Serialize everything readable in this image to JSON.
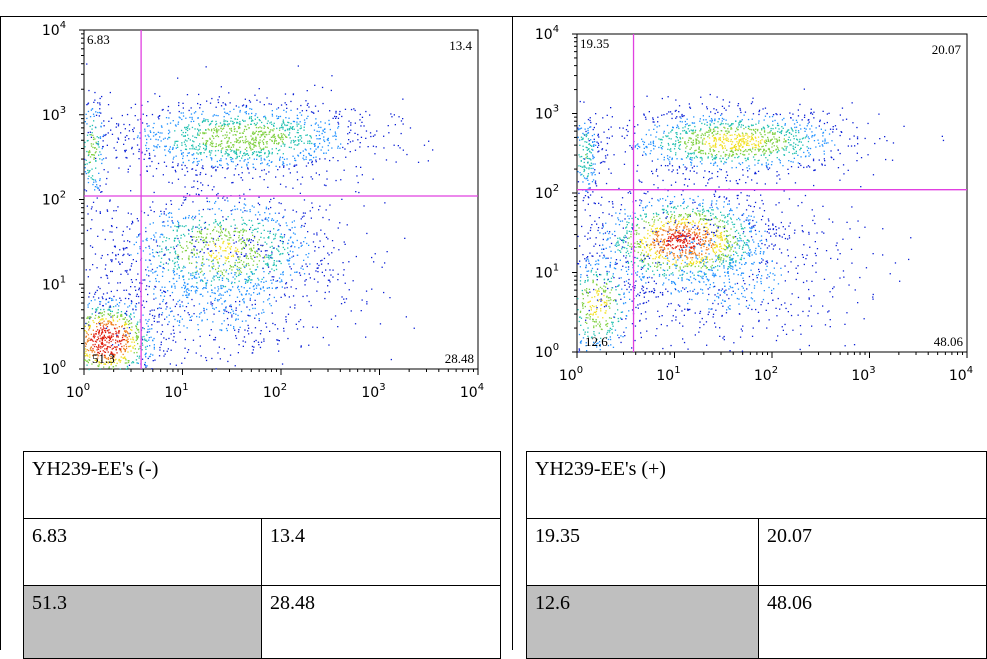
{
  "colors": {
    "gate": "#e040e0",
    "shade": "#bfbfbf",
    "density": [
      "#0a1fd6",
      "#1e90ff",
      "#20c0b0",
      "#7fd040",
      "#f2e020",
      "#f08020",
      "#e02010"
    ]
  },
  "chart_data": [
    {
      "type": "scatter",
      "subtype": "flow-cytometry-density-dot-plot",
      "xscale": "log",
      "yscale": "log",
      "xlim": [
        1,
        10000
      ],
      "ylim": [
        1,
        10000
      ],
      "x_ticks": [
        "10",
        "10",
        "10",
        "10",
        "10"
      ],
      "x_tick_exp": [
        "0",
        "1",
        "2",
        "3",
        "4"
      ],
      "y_ticks": [
        "10",
        "10",
        "10",
        "10",
        "10"
      ],
      "y_tick_exp": [
        "0",
        "1",
        "2",
        "3",
        "4"
      ],
      "gate": {
        "x": 3.8,
        "y": 110
      },
      "quadrants": {
        "upper_left": "6.83",
        "upper_right": "13.4",
        "lower_left": "51.3",
        "lower_right": "28.48"
      },
      "populations": [
        {
          "cx": 1.7,
          "cy": 2.2,
          "sx": 0.25,
          "sy": 0.25,
          "n": 900,
          "w": 1.0
        },
        {
          "cx": 25,
          "cy": 25,
          "sx": 0.55,
          "sy": 0.35,
          "n": 1100,
          "w": 0.55
        },
        {
          "cx": 40,
          "cy": 550,
          "sx": 0.65,
          "sy": 0.22,
          "n": 1300,
          "w": 0.5
        },
        {
          "cx": 1.2,
          "cy": 400,
          "sx": 0.08,
          "sy": 0.35,
          "n": 200,
          "w": 0.45
        },
        {
          "cx": 20,
          "cy": 8,
          "sx": 0.7,
          "sy": 0.5,
          "n": 700,
          "w": 0.2
        }
      ]
    },
    {
      "type": "scatter",
      "subtype": "flow-cytometry-density-dot-plot",
      "xscale": "log",
      "yscale": "log",
      "xlim": [
        1,
        10000
      ],
      "ylim": [
        1,
        10000
      ],
      "x_ticks": [
        "10",
        "10",
        "10",
        "10",
        "10"
      ],
      "x_tick_exp": [
        "0",
        "1",
        "2",
        "3",
        "4"
      ],
      "y_ticks": [
        "10",
        "10",
        "10",
        "10",
        "10"
      ],
      "y_tick_exp": [
        "0",
        "1",
        "2",
        "3",
        "4"
      ],
      "gate": {
        "x": 3.8,
        "y": 110
      },
      "quadrants": {
        "upper_left": "19.35",
        "upper_right": "20.07",
        "lower_left": "12.6",
        "lower_right": "48.06"
      },
      "populations": [
        {
          "cx": 12,
          "cy": 25,
          "sx": 0.45,
          "sy": 0.3,
          "n": 1400,
          "w": 0.85
        },
        {
          "cx": 40,
          "cy": 450,
          "sx": 0.6,
          "sy": 0.2,
          "n": 1200,
          "w": 0.6
        },
        {
          "cx": 1.6,
          "cy": 4,
          "sx": 0.2,
          "sy": 0.35,
          "n": 400,
          "w": 0.6
        },
        {
          "cx": 1.2,
          "cy": 300,
          "sx": 0.08,
          "sy": 0.3,
          "n": 200,
          "w": 0.4
        },
        {
          "cx": 30,
          "cy": 10,
          "sx": 0.7,
          "sy": 0.5,
          "n": 700,
          "w": 0.2
        }
      ]
    }
  ],
  "tables": [
    {
      "title": "YH239-EE's (-)",
      "upper_left": "6.83",
      "upper_right": "13.4",
      "lower_left": "51.3",
      "lower_right": "28.48"
    },
    {
      "title": "YH239-EE's (+)",
      "upper_left": "19.35",
      "upper_right": "20.07",
      "lower_left": "12.6",
      "lower_right": "48.06"
    }
  ]
}
